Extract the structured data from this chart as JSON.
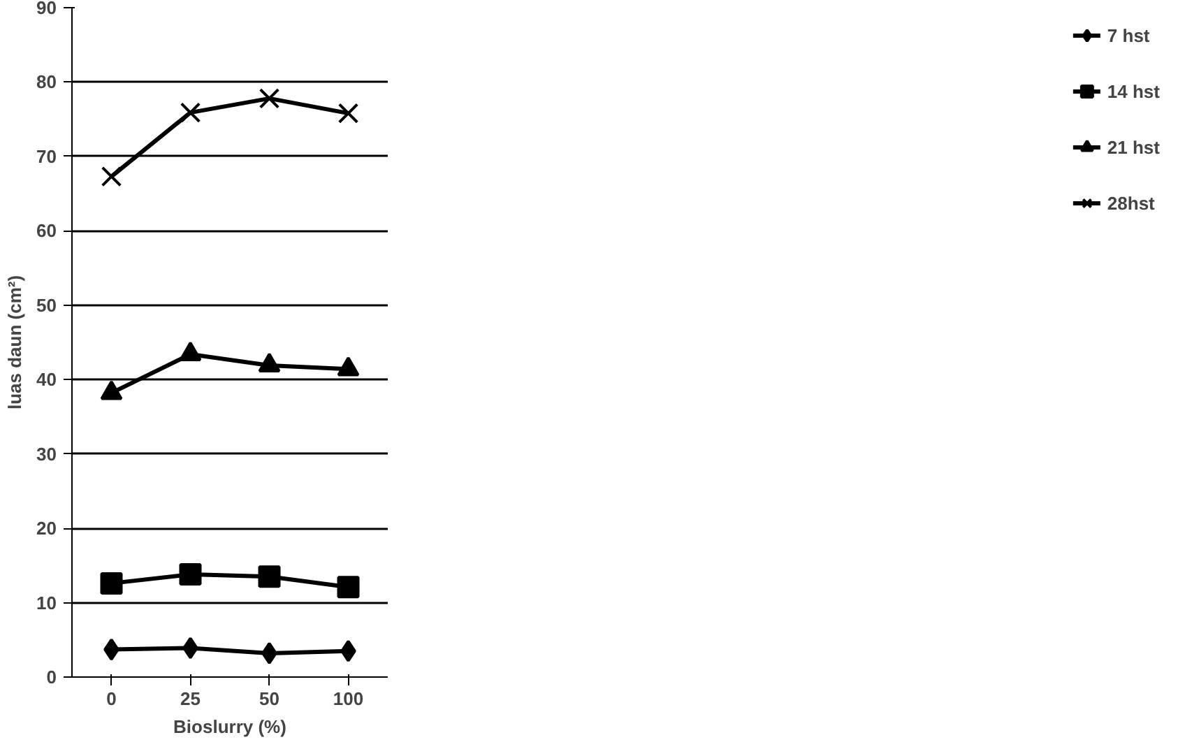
{
  "chart_data": {
    "type": "line",
    "xlabel": "Bioslurry (%)",
    "ylabel": "luas daun (cm²)",
    "categories": [
      "0",
      "25",
      "50",
      "100"
    ],
    "ylim": [
      0,
      90
    ],
    "yticks": [
      0,
      10,
      20,
      30,
      40,
      50,
      60,
      70,
      80,
      90
    ],
    "grid": "y",
    "legend": "right",
    "line_style": "solid",
    "series": [
      {
        "name": "7 hst",
        "color": "#000000",
        "marker": "diamond",
        "values": [
          3.7,
          3.9,
          3.2,
          3.5
        ]
      },
      {
        "name": "14 hst",
        "color": "#000000",
        "marker": "square",
        "values": [
          12.6,
          13.8,
          13.5,
          12.1
        ]
      },
      {
        "name": "21 hst",
        "color": "#000000",
        "marker": "triangle",
        "values": [
          38.2,
          43.4,
          41.9,
          41.4
        ]
      },
      {
        "name": "28hst",
        "color": "#000000",
        "marker": "cross",
        "values": [
          67.3,
          75.9,
          77.8,
          75.8
        ]
      }
    ]
  }
}
